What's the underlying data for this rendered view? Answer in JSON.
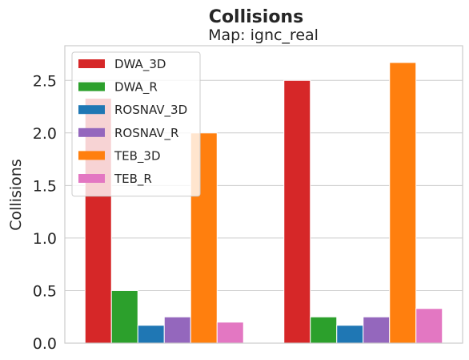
{
  "chart_data": {
    "type": "bar",
    "suptitle": "Collisions",
    "title": "Map: ignc_real",
    "xlabel": "",
    "ylabel": "Collisions",
    "ylim": [
      0,
      2.83
    ],
    "yticks": [
      "0.0",
      "0.5",
      "1.0",
      "1.5",
      "2.0",
      "2.5"
    ],
    "grid": true,
    "legend_position": "top-left",
    "groups": 2,
    "series": [
      {
        "name": "DWA_3D",
        "color": "#d62728",
        "values": [
          2.33,
          2.5
        ]
      },
      {
        "name": "DWA_R",
        "color": "#2ca02c",
        "values": [
          0.5,
          0.25
        ]
      },
      {
        "name": "ROSNAV_3D",
        "color": "#1f77b4",
        "values": [
          0.17,
          0.17
        ]
      },
      {
        "name": "ROSNAV_R",
        "color": "#9467bd",
        "values": [
          0.25,
          0.25
        ]
      },
      {
        "name": "TEB_3D",
        "color": "#ff7f0e",
        "values": [
          2.0,
          2.67
        ]
      },
      {
        "name": "TEB_R",
        "color": "#e377c2",
        "values": [
          0.2,
          0.33
        ]
      }
    ]
  }
}
